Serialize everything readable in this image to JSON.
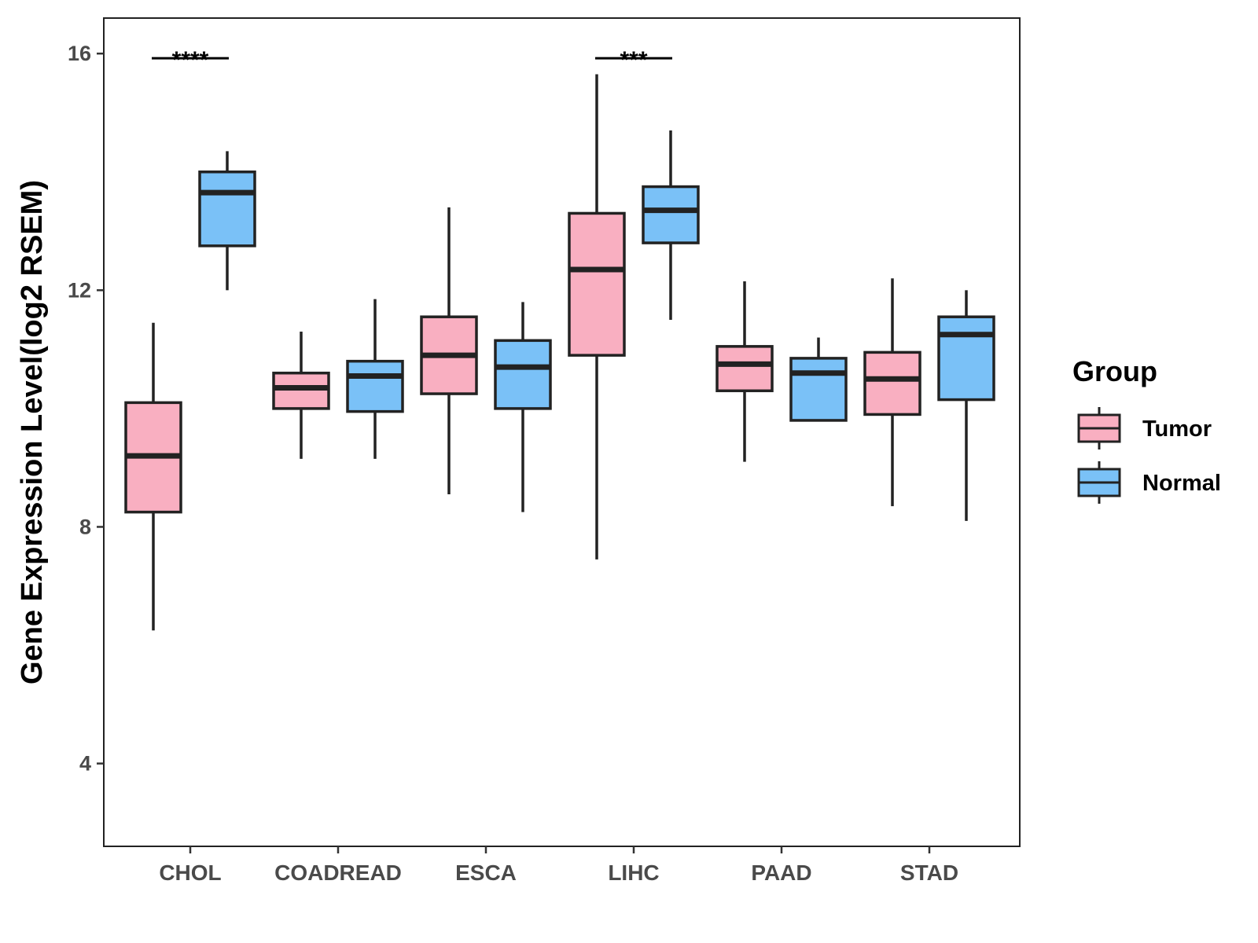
{
  "chart_data": {
    "type": "boxplot",
    "title": "",
    "xlabel": "",
    "ylabel": "Gene Expression Level(log2 RSEM)",
    "ylim": [
      2.6,
      16.6
    ],
    "yticks": [
      4,
      8,
      12,
      16
    ],
    "yticklabels": [
      "4",
      "8",
      "12",
      "16"
    ],
    "grid": false,
    "legend": {
      "title": "Group",
      "position": "right",
      "entries": [
        {
          "name": "Tumor",
          "color": "#F9AFC1"
        },
        {
          "name": "Normal",
          "color": "#7AC1F7"
        }
      ]
    },
    "categories": [
      "CHOL",
      "COADREAD",
      "ESCA",
      "LIHC",
      "PAAD",
      "STAD"
    ],
    "series": [
      {
        "name": "Tumor",
        "color": "#F9AFC1",
        "boxes": [
          {
            "lower_whisker": 6.25,
            "q1": 8.25,
            "median": 9.2,
            "q3": 10.1,
            "upper_whisker": 11.45
          },
          {
            "lower_whisker": 9.15,
            "q1": 10.0,
            "median": 10.35,
            "q3": 10.6,
            "upper_whisker": 11.3
          },
          {
            "lower_whisker": 8.55,
            "q1": 10.25,
            "median": 10.9,
            "q3": 11.55,
            "upper_whisker": 13.4
          },
          {
            "lower_whisker": 7.45,
            "q1": 10.9,
            "median": 12.35,
            "q3": 13.3,
            "upper_whisker": 15.65
          },
          {
            "lower_whisker": 9.1,
            "q1": 10.3,
            "median": 10.75,
            "q3": 11.05,
            "upper_whisker": 12.15
          },
          {
            "lower_whisker": 8.35,
            "q1": 9.9,
            "median": 10.5,
            "q3": 10.95,
            "upper_whisker": 12.2
          }
        ]
      },
      {
        "name": "Normal",
        "color": "#7AC1F7",
        "boxes": [
          {
            "lower_whisker": 12.0,
            "q1": 12.75,
            "median": 13.65,
            "q3": 14.0,
            "upper_whisker": 14.35
          },
          {
            "lower_whisker": 9.15,
            "q1": 9.95,
            "median": 10.55,
            "q3": 10.8,
            "upper_whisker": 11.85
          },
          {
            "lower_whisker": 8.25,
            "q1": 10.0,
            "median": 10.7,
            "q3": 11.15,
            "upper_whisker": 11.8
          },
          {
            "lower_whisker": 11.5,
            "q1": 12.8,
            "median": 13.35,
            "q3": 13.75,
            "upper_whisker": 14.7
          },
          {
            "lower_whisker": 9.8,
            "q1": 9.8,
            "median": 10.6,
            "q3": 10.85,
            "upper_whisker": 11.2
          },
          {
            "lower_whisker": 8.1,
            "q1": 10.15,
            "median": 11.25,
            "q3": 11.55,
            "upper_whisker": 12.0
          }
        ]
      }
    ],
    "annotations": [
      {
        "category": "CHOL",
        "label": "****",
        "y": 16.0
      },
      {
        "category": "LIHC",
        "label": "***",
        "y": 16.0
      }
    ]
  }
}
